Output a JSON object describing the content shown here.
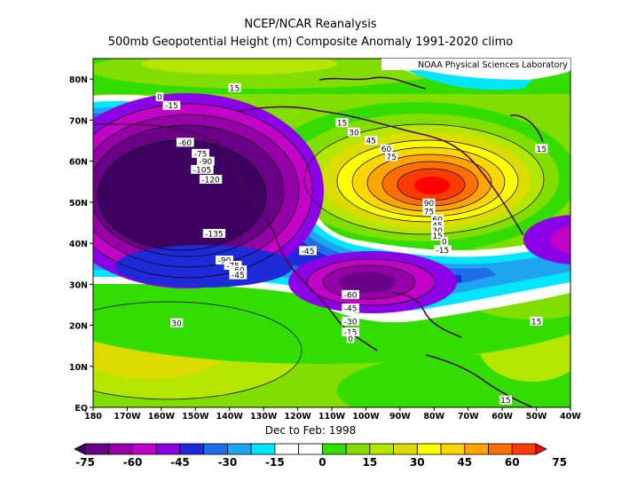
{
  "title": {
    "line1": "NCEP/NCAR Reanalysis",
    "line2": "500mb Geopotential Height (m) Composite Anomaly 1991-2020 climo"
  },
  "credit": "NOAA Physical Sciences Laboratory",
  "subtitle": "Dec to Feb: 1998",
  "map": {
    "lat_labels": [
      "80N",
      "70N",
      "60N",
      "50N",
      "40N",
      "30N",
      "20N",
      "10N",
      "EQ"
    ],
    "lon_labels": [
      "180",
      "170W",
      "160W",
      "150W",
      "140W",
      "130W",
      "120W",
      "110W",
      "100W",
      "90W",
      "80W",
      "70W",
      "60W",
      "50W",
      "40W"
    ]
  },
  "contour_labels": [
    {
      "text": "0",
      "lon": -160.5,
      "lat": 75.7
    },
    {
      "text": "-15",
      "lon": -157.0,
      "lat": 73.6
    },
    {
      "text": "15",
      "lon": -138.5,
      "lat": 77.9
    },
    {
      "text": "-60",
      "lon": -153.0,
      "lat": 64.6
    },
    {
      "text": "-75",
      "lon": -148.5,
      "lat": 61.9
    },
    {
      "text": "-90",
      "lon": -147.0,
      "lat": 60.0
    },
    {
      "text": "-105",
      "lon": -148.0,
      "lat": 58.0
    },
    {
      "text": "-120",
      "lon": -145.5,
      "lat": 55.6
    },
    {
      "text": "-135",
      "lon": -144.5,
      "lat": 42.4
    },
    {
      "text": "-90",
      "lon": -141.5,
      "lat": 35.9
    },
    {
      "text": "-75",
      "lon": -139.0,
      "lat": 34.6
    },
    {
      "text": "-60",
      "lon": -137.5,
      "lat": 33.5
    },
    {
      "text": "-45",
      "lon": -137.5,
      "lat": 32.3
    },
    {
      "text": "15",
      "lon": -107.0,
      "lat": 69.4
    },
    {
      "text": "30",
      "lon": -103.5,
      "lat": 67.1
    },
    {
      "text": "45",
      "lon": -98.5,
      "lat": 65.1
    },
    {
      "text": "60",
      "lon": -94.0,
      "lat": 63.0
    },
    {
      "text": "75",
      "lon": -92.5,
      "lat": 61.1
    },
    {
      "text": "90",
      "lon": -81.5,
      "lat": 49.8
    },
    {
      "text": "75",
      "lon": -81.5,
      "lat": 47.8
    },
    {
      "text": "60",
      "lon": -79.0,
      "lat": 45.9
    },
    {
      "text": "45",
      "lon": -79.0,
      "lat": 44.5
    },
    {
      "text": "30",
      "lon": -79.0,
      "lat": 43.2
    },
    {
      "text": "15",
      "lon": -79.0,
      "lat": 41.8
    },
    {
      "text": "0",
      "lon": -77.0,
      "lat": 40.4
    },
    {
      "text": "-15",
      "lon": -77.5,
      "lat": 38.4
    },
    {
      "text": "-45",
      "lon": -117.0,
      "lat": 38.2
    },
    {
      "text": "-60",
      "lon": -104.5,
      "lat": 27.5
    },
    {
      "text": "-45",
      "lon": -104.5,
      "lat": 24.2
    },
    {
      "text": "-30",
      "lon": -104.5,
      "lat": 21.0
    },
    {
      "text": "-15",
      "lon": -104.5,
      "lat": 18.4
    },
    {
      "text": "0",
      "lon": -104.5,
      "lat": 16.8
    },
    {
      "text": "15",
      "lon": -48.5,
      "lat": 63.1
    },
    {
      "text": "15",
      "lon": -50.0,
      "lat": 21.0
    },
    {
      "text": "30",
      "lon": -155.5,
      "lat": 20.6
    },
    {
      "text": "15",
      "lon": -59.0,
      "lat": 1.8
    }
  ],
  "colorbar": {
    "labels": [
      "-75",
      "-60",
      "-45",
      "-30",
      "-15",
      "0",
      "15",
      "30",
      "45",
      "60",
      "75"
    ],
    "colors": [
      "#3d0060",
      "#6a0086",
      "#9600a8",
      "#c300c8",
      "#8b00e6",
      "#1e2ad7",
      "#1e6ee8",
      "#1ea5f0",
      "#00e6ff",
      "#ffffff",
      "#ffffff",
      "#33dd00",
      "#82dd00",
      "#b4e600",
      "#dcdc00",
      "#ffff00",
      "#ffd700",
      "#ffa500",
      "#ff6e00",
      "#ff3c00",
      "#ff0000"
    ]
  },
  "field": {
    "low_center_aleutian": {
      "lon": -160,
      "lat": 50
    },
    "high_center_hudson": {
      "lon": -84,
      "lat": 55
    },
    "low_center_gulf": {
      "lon": -95,
      "lat": 28
    }
  }
}
